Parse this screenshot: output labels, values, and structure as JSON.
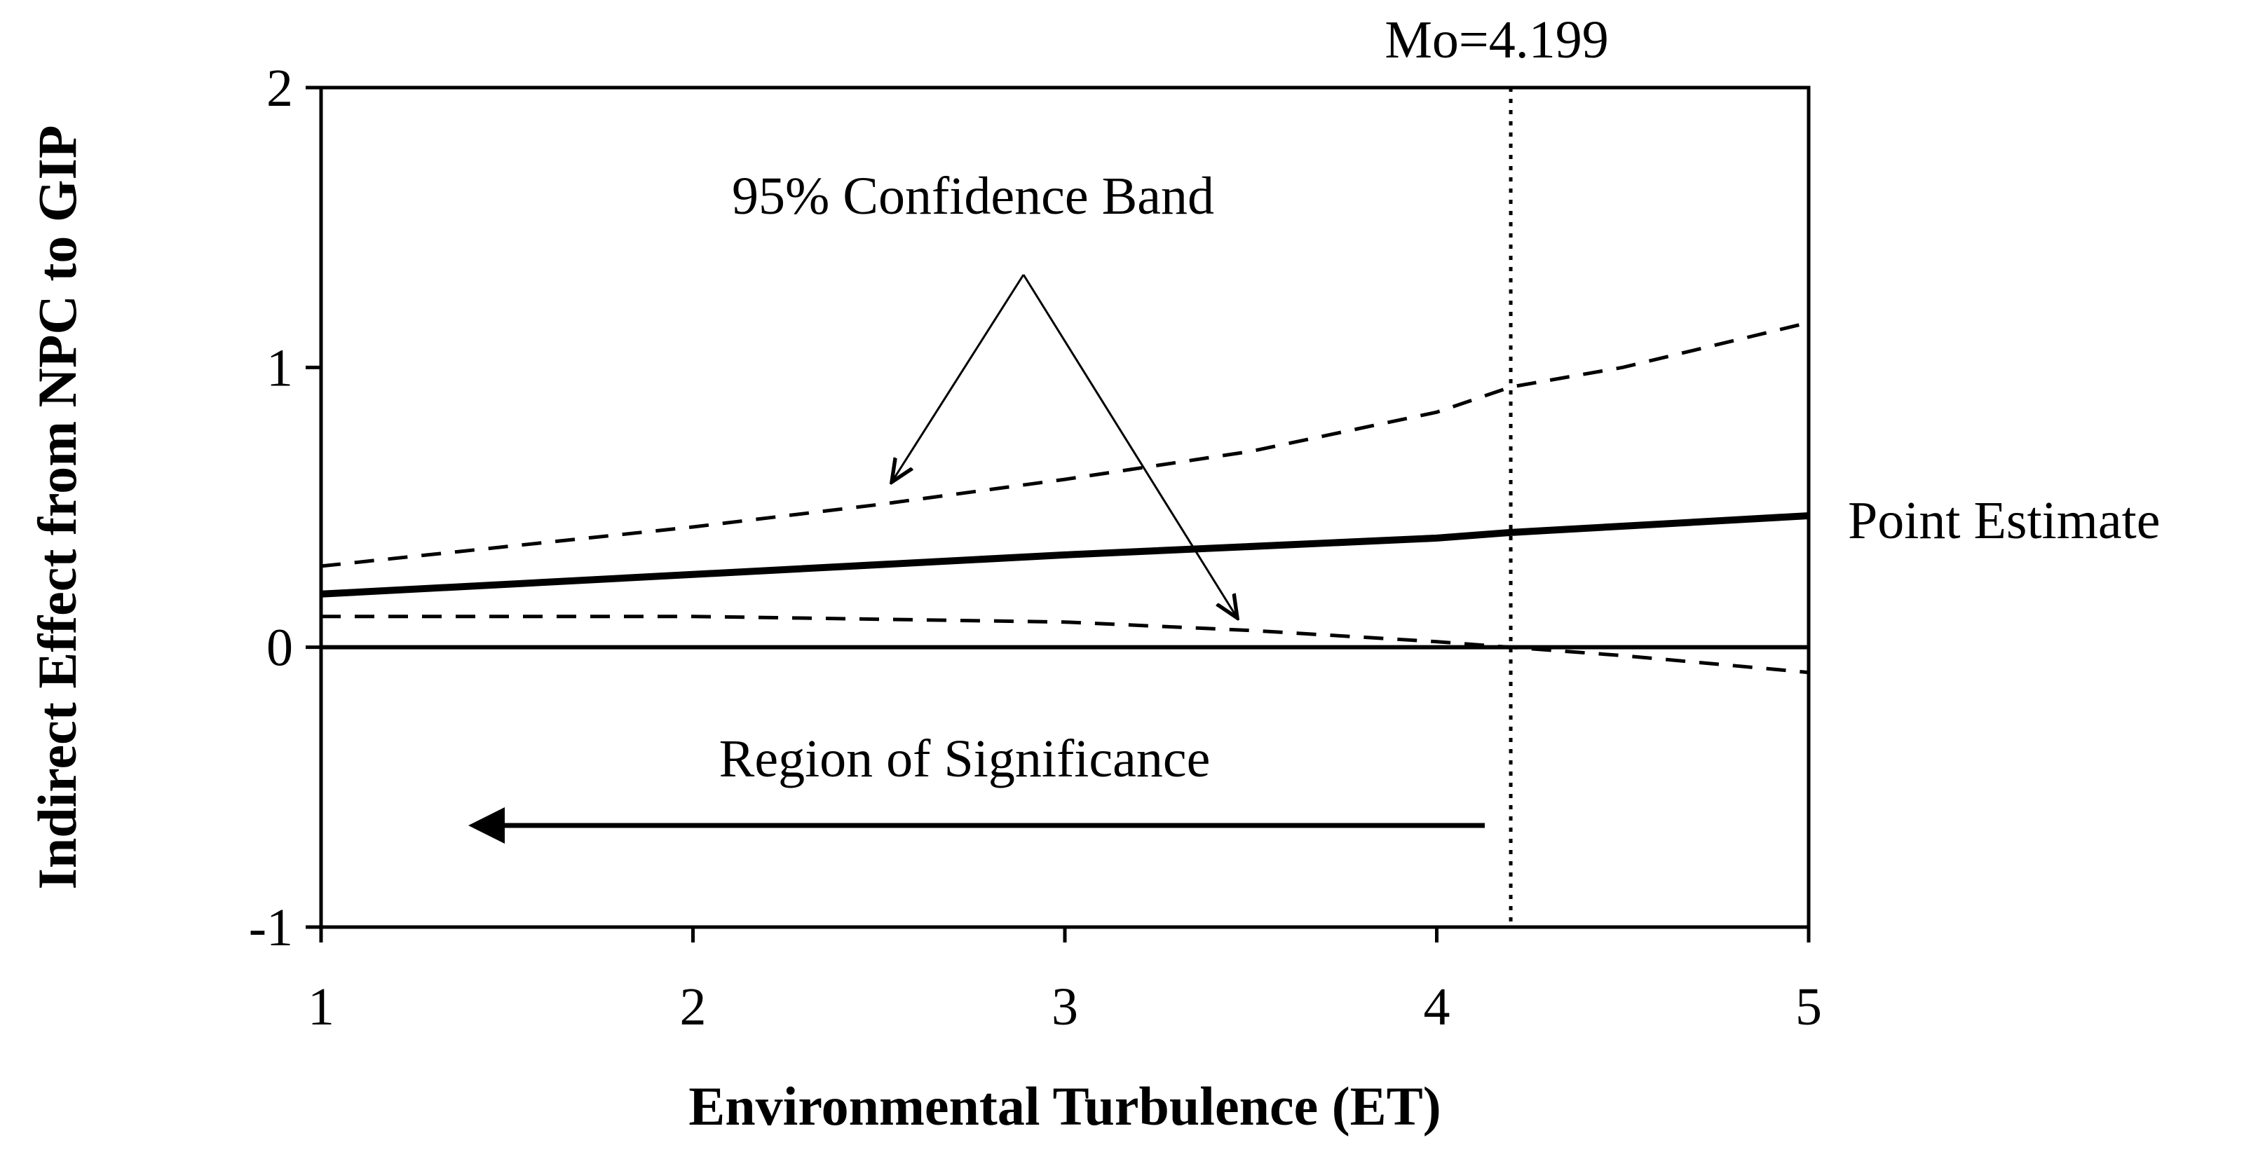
{
  "chart_data": {
    "type": "line",
    "xlabel": "Environmental Turbulence (ET)",
    "ylabel": "Indirect Effect from NPC to GIP",
    "xlim": [
      1,
      5
    ],
    "ylim": [
      -1,
      2
    ],
    "x_ticks": [
      "1",
      "2",
      "3",
      "4",
      "5"
    ],
    "y_ticks": [
      "2",
      "1",
      "0",
      "-1"
    ],
    "series": [
      {
        "name": "Point Estimate",
        "style": "solid",
        "x": [
          1,
          2,
          3,
          4,
          4.199,
          5
        ],
        "y": [
          0.19,
          0.26,
          0.33,
          0.39,
          0.41,
          0.47
        ]
      },
      {
        "name": "95% Confidence Band (upper)",
        "style": "dashed",
        "x": [
          1,
          1.5,
          2,
          2.5,
          3,
          3.5,
          4,
          4.199,
          4.5,
          5
        ],
        "y": [
          0.29,
          0.36,
          0.43,
          0.51,
          0.6,
          0.7,
          0.84,
          0.93,
          1.0,
          1.16
        ]
      },
      {
        "name": "95% Confidence Band (lower)",
        "style": "dashed",
        "x": [
          1,
          2,
          3,
          3.5,
          4,
          4.199,
          4.5,
          5
        ],
        "y": [
          0.11,
          0.11,
          0.09,
          0.06,
          0.02,
          0.0,
          -0.03,
          -0.09
        ]
      }
    ],
    "zero_line": 0,
    "moderator_line": {
      "x": 4.199,
      "label": "Mo=4.199"
    },
    "annotations": {
      "confidence_band": "95% Confidence Band",
      "point_estimate": "Point Estimate",
      "region": "Region of Significance"
    }
  }
}
